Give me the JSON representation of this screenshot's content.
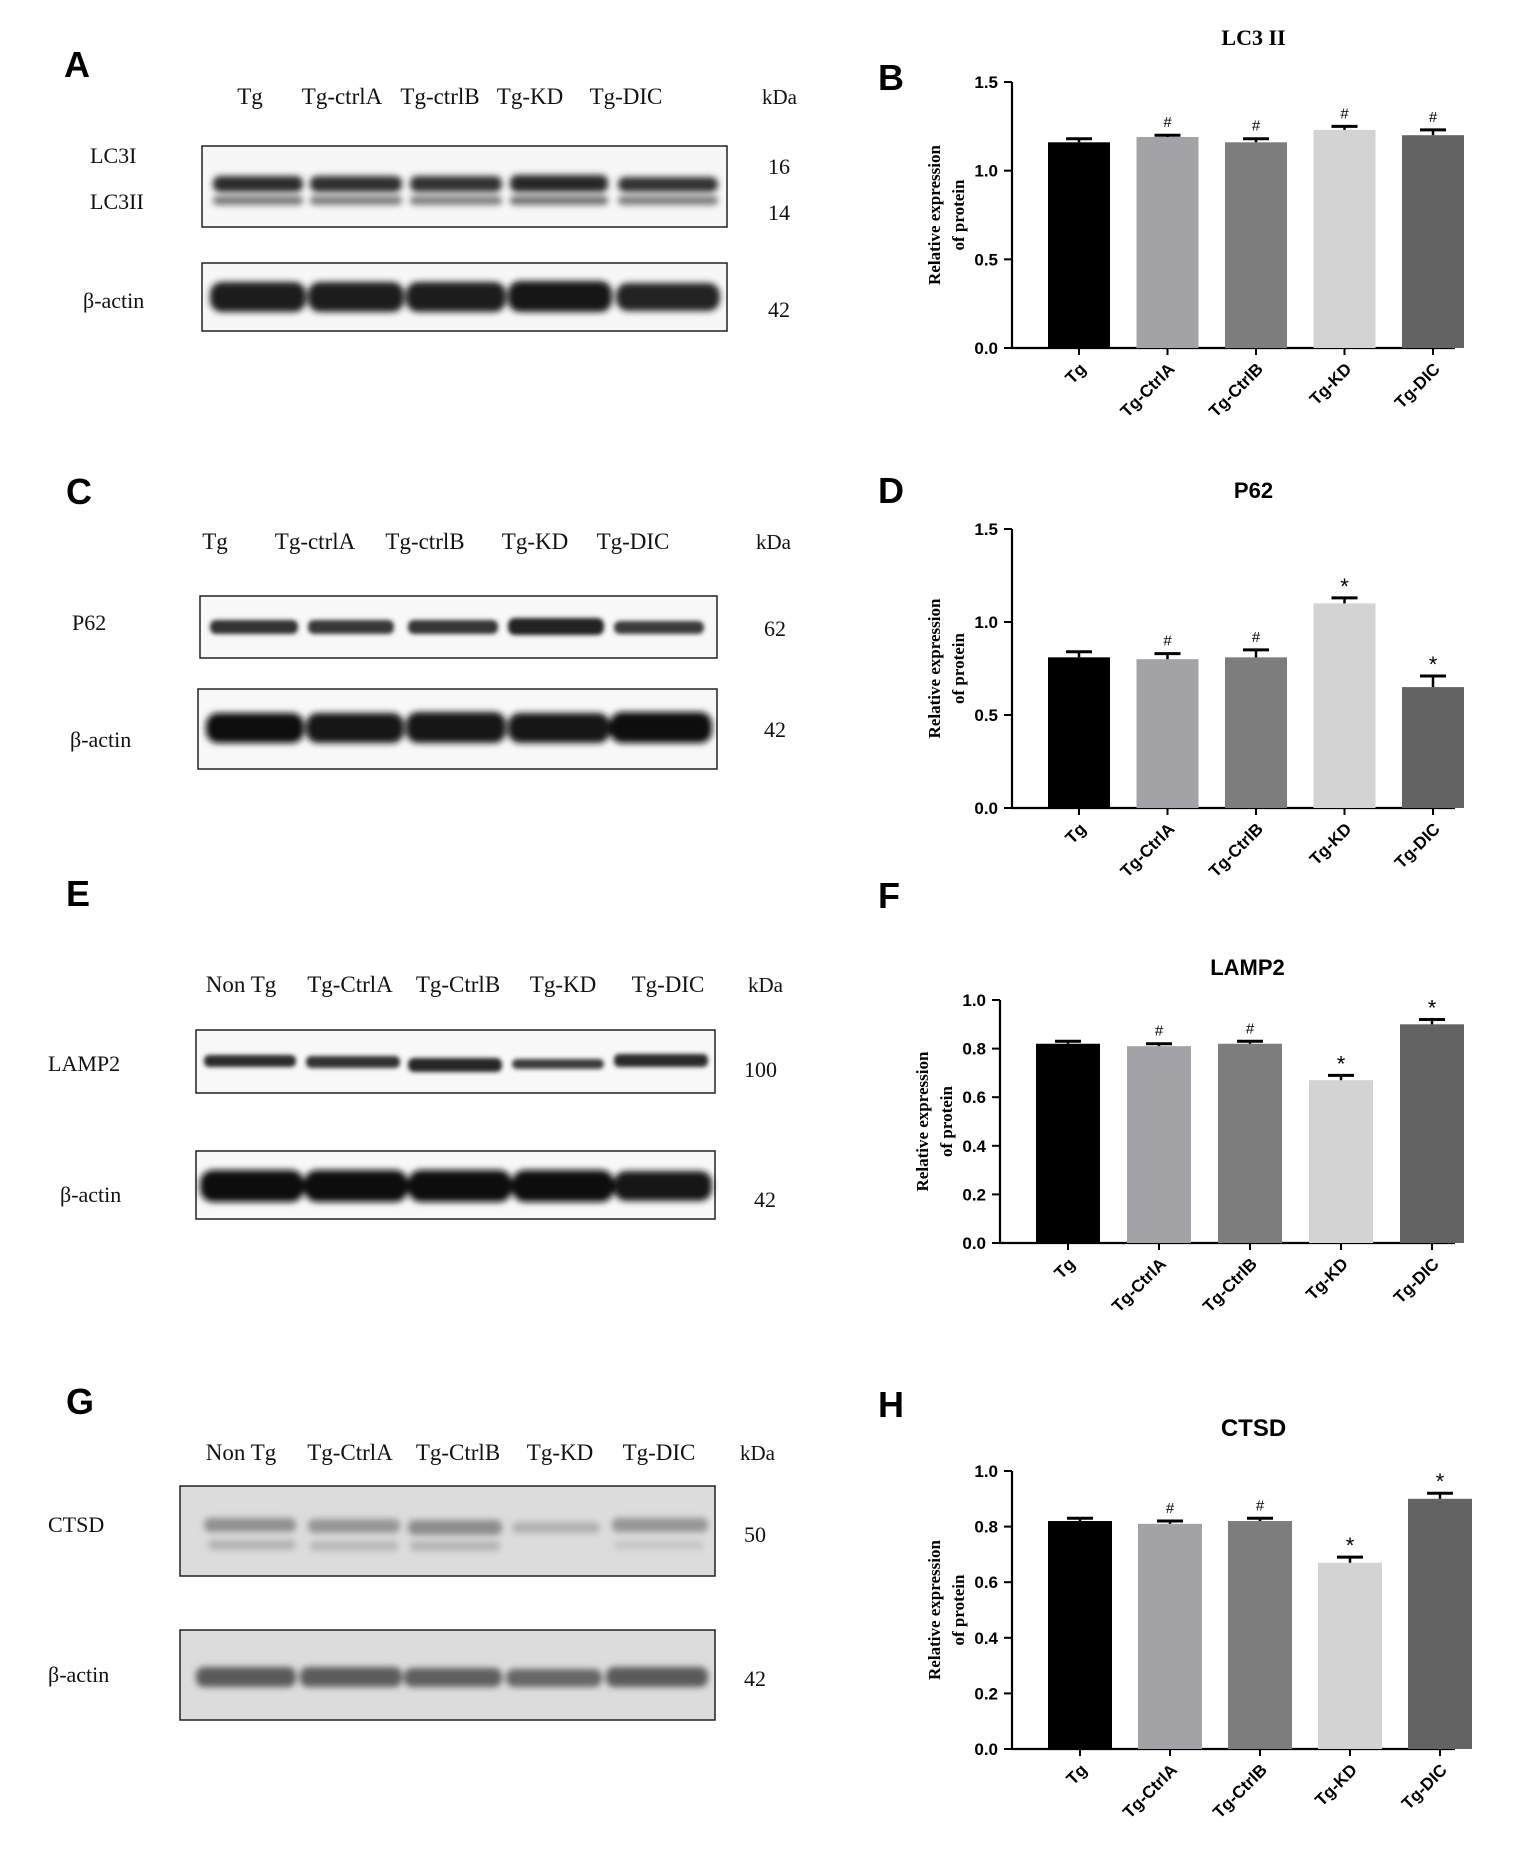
{
  "panels": [
    {
      "letter": "A",
      "kda_label": "kDa",
      "lanes": [
        "Tg",
        "Tg-ctrlA",
        "Tg-ctrlB",
        "Tg-KD",
        "Tg-DIC"
      ],
      "blots": [
        {
          "labels": [
            "LC3I",
            "LC3II"
          ],
          "kda": [
            "16",
            "14"
          ]
        },
        {
          "labels": [
            "β-actin"
          ],
          "kda": [
            "42"
          ]
        }
      ]
    },
    {
      "letter": "C",
      "kda_label": "kDa",
      "lanes": [
        "Tg",
        "Tg-ctrlA",
        "Tg-ctrlB",
        "Tg-KD",
        "Tg-DIC"
      ],
      "blots": [
        {
          "labels": [
            "P62"
          ],
          "kda": [
            "62"
          ]
        },
        {
          "labels": [
            "β-actin"
          ],
          "kda": [
            "42"
          ]
        }
      ]
    },
    {
      "letter": "E",
      "kda_label": "kDa",
      "lanes": [
        "Non Tg",
        "Tg-CtrlA",
        "Tg-CtrlB",
        "Tg-KD",
        "Tg-DIC"
      ],
      "blots": [
        {
          "labels": [
            "LAMP2"
          ],
          "kda": [
            "100"
          ]
        },
        {
          "labels": [
            "β-actin"
          ],
          "kda": [
            "42"
          ]
        }
      ]
    },
    {
      "letter": "G",
      "kda_label": "kDa",
      "lanes": [
        "Non Tg",
        "Tg-CtrlA",
        "Tg-CtrlB",
        "Tg-KD",
        "Tg-DIC"
      ],
      "blots": [
        {
          "labels": [
            "CTSD"
          ],
          "kda": [
            "50"
          ]
        },
        {
          "labels": [
            "β-actin"
          ],
          "kda": [
            "42"
          ]
        }
      ]
    }
  ],
  "chart_data": [
    {
      "letter": "B",
      "type": "bar",
      "title": "LC3 II",
      "ylabel": [
        "Relative expression",
        "of protein"
      ],
      "categories": [
        "Tg",
        "Tg-CtrlA",
        "Tg-CtrlB",
        "Tg-KD",
        "Tg-DIC"
      ],
      "values": [
        1.16,
        1.19,
        1.16,
        1.23,
        1.2
      ],
      "errors": [
        0.02,
        0.01,
        0.02,
        0.02,
        0.03
      ],
      "annotations": [
        "",
        "#",
        "#",
        "#",
        "#"
      ],
      "ylim": [
        0,
        1.5
      ],
      "yticks": [
        "0.0",
        "0.5",
        "1.0",
        "1.5"
      ],
      "colors": [
        "#000000",
        "#a3a3a7",
        "#7d7d7d",
        "#d3d3d3",
        "#636363"
      ]
    },
    {
      "letter": "D",
      "type": "bar",
      "title": "P62",
      "ylabel": [
        "Relative expression",
        "of protein"
      ],
      "categories": [
        "Tg",
        "Tg-CtrlA",
        "Tg-CtrlB",
        "Tg-KD",
        "Tg-DIC"
      ],
      "values": [
        0.81,
        0.8,
        0.81,
        1.1,
        0.65
      ],
      "errors": [
        0.03,
        0.03,
        0.04,
        0.03,
        0.06
      ],
      "annotations": [
        "",
        "#",
        "#",
        "*",
        "*"
      ],
      "ylim": [
        0,
        1.5
      ],
      "yticks": [
        "0.0",
        "0.5",
        "1.0",
        "1.5"
      ],
      "colors": [
        "#000000",
        "#a3a3a7",
        "#7d7d7d",
        "#d3d3d3",
        "#636363"
      ]
    },
    {
      "letter": "F",
      "type": "bar",
      "title": "LAMP2",
      "ylabel": [
        "Relative expression",
        "of protein"
      ],
      "categories": [
        "Tg",
        "Tg-CtrlA",
        "Tg-CtrlB",
        "Tg-KD",
        "Tg-DIC"
      ],
      "values": [
        0.82,
        0.81,
        0.82,
        0.67,
        0.9
      ],
      "errors": [
        0.01,
        0.01,
        0.01,
        0.02,
        0.02
      ],
      "annotations": [
        "",
        "#",
        "#",
        "*",
        "*"
      ],
      "ylim": [
        0,
        1.0
      ],
      "yticks": [
        "0.0",
        "0.2",
        "0.4",
        "0.6",
        "0.8",
        "1.0"
      ],
      "colors": [
        "#000000",
        "#a3a3a7",
        "#7d7d7d",
        "#d3d3d3",
        "#636363"
      ]
    },
    {
      "letter": "H",
      "type": "bar",
      "title": "CTSD",
      "ylabel": [
        "Relative expression",
        "of protein"
      ],
      "categories": [
        "Tg",
        "Tg-CtrlA",
        "Tg-CtrlB",
        "Tg-KD",
        "Tg-DIC"
      ],
      "values": [
        0.82,
        0.81,
        0.82,
        0.67,
        0.9
      ],
      "errors": [
        0.01,
        0.01,
        0.01,
        0.02,
        0.02
      ],
      "annotations": [
        "",
        "#",
        "#",
        "*",
        "*"
      ],
      "ylim": [
        0,
        1.0
      ],
      "yticks": [
        "0.0",
        "0.2",
        "0.4",
        "0.6",
        "0.8",
        "1.0"
      ],
      "colors": [
        "#000000",
        "#a3a3a7",
        "#7d7d7d",
        "#d3d3d3",
        "#636363"
      ]
    }
  ]
}
